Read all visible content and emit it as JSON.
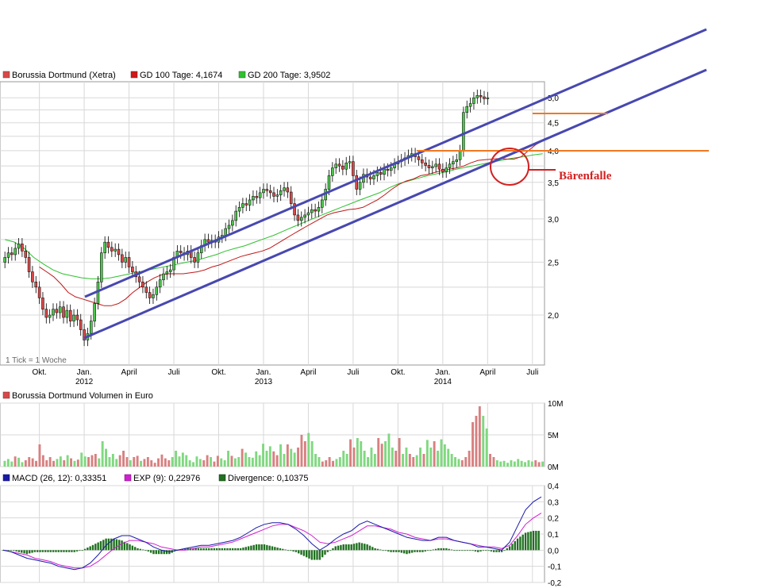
{
  "chart_data": [
    {
      "type": "candlestick",
      "title": "Borussia Dortmund (Xetra)",
      "legend": [
        {
          "label": "Borussia Dortmund (Xetra)",
          "color": "#d84848"
        },
        {
          "label": "GD 100 Tage: 4,1674",
          "color": "#d01818"
        },
        {
          "label": "GD 200 Tage: 3,9502",
          "color": "#30c030"
        }
      ],
      "tick_note": "1 Tick = 1 Woche",
      "y_scale": "log",
      "ylim": [
        1.62,
        5.35
      ],
      "y_ticks": [
        "5,0",
        "4,5",
        "4,0",
        "3,5",
        "3,0",
        "2,5",
        "2,0"
      ],
      "x_ticks": [
        {
          "label": "Okt.",
          "week": 10
        },
        {
          "label": "Jan.",
          "sub": "2012",
          "week": 23
        },
        {
          "label": "April",
          "week": 36
        },
        {
          "label": "Juli",
          "week": 49
        },
        {
          "label": "Okt.",
          "week": 62
        },
        {
          "label": "Jan.",
          "sub": "2013",
          "week": 75
        },
        {
          "label": "April",
          "week": 88
        },
        {
          "label": "Juli",
          "week": 101
        },
        {
          "label": "Okt.",
          "week": 114
        },
        {
          "label": "Jan.",
          "sub": "2014",
          "week": 127
        },
        {
          "label": "April",
          "week": 140
        },
        {
          "label": "Juli",
          "week": 153
        }
      ],
      "weeks": 157,
      "close": [
        2.55,
        2.6,
        2.58,
        2.65,
        2.7,
        2.62,
        2.55,
        2.4,
        2.3,
        2.25,
        2.15,
        2.05,
        1.98,
        2.0,
        2.05,
        2.02,
        2.07,
        1.98,
        2.04,
        1.95,
        2.0,
        1.96,
        1.88,
        1.8,
        1.85,
        1.95,
        2.1,
        2.3,
        2.6,
        2.72,
        2.66,
        2.62,
        2.64,
        2.58,
        2.5,
        2.55,
        2.45,
        2.4,
        2.35,
        2.3,
        2.25,
        2.2,
        2.15,
        2.18,
        2.25,
        2.32,
        2.38,
        2.4,
        2.42,
        2.55,
        2.62,
        2.6,
        2.58,
        2.62,
        2.55,
        2.5,
        2.6,
        2.68,
        2.75,
        2.72,
        2.74,
        2.72,
        2.78,
        2.8,
        2.88,
        2.92,
        2.98,
        3.1,
        3.15,
        3.2,
        3.18,
        3.25,
        3.3,
        3.28,
        3.35,
        3.4,
        3.38,
        3.35,
        3.3,
        3.32,
        3.38,
        3.42,
        3.36,
        3.2,
        3.05,
        2.98,
        3.02,
        3.05,
        3.08,
        3.12,
        3.1,
        3.15,
        3.25,
        3.4,
        3.6,
        3.72,
        3.78,
        3.75,
        3.7,
        3.8,
        3.82,
        3.6,
        3.4,
        3.5,
        3.62,
        3.58,
        3.55,
        3.6,
        3.65,
        3.62,
        3.7,
        3.68,
        3.72,
        3.78,
        3.82,
        3.85,
        3.88,
        3.92,
        3.95,
        3.9,
        3.85,
        3.8,
        3.76,
        3.72,
        3.74,
        3.78,
        3.7,
        3.66,
        3.72,
        3.78,
        3.82,
        3.85,
        4.0,
        4.7,
        4.82,
        4.88,
        5.0,
        5.05,
        5.02,
        4.98,
        5.0
      ],
      "gd100": [
        2.45,
        2.4,
        2.35,
        2.28,
        2.2,
        2.16,
        2.14,
        2.12,
        2.1,
        2.08,
        2.08,
        2.1,
        2.14,
        2.2,
        2.25,
        2.3,
        2.34,
        2.37,
        2.38,
        2.38,
        2.38,
        2.39,
        2.4,
        2.42,
        2.45,
        2.47,
        2.5,
        2.53,
        2.56,
        2.58,
        2.6,
        2.62,
        2.65,
        2.7,
        2.75,
        2.8,
        2.85,
        2.9,
        2.95,
        3.0,
        3.05,
        3.08,
        3.1,
        3.12,
        3.13,
        3.15,
        3.2,
        3.25,
        3.32,
        3.4,
        3.47,
        3.52,
        3.55,
        3.6,
        3.62,
        3.65,
        3.68,
        3.7,
        3.72,
        3.75,
        3.8,
        3.84,
        3.85,
        3.86,
        3.87,
        3.86,
        3.86,
        3.9,
        4.0,
        4.1,
        4.17
      ],
      "gd200": [
        2.75,
        2.72,
        2.65,
        2.55,
        2.48,
        2.42,
        2.38,
        2.36,
        2.34,
        2.33,
        2.33,
        2.34,
        2.36,
        2.38,
        2.4,
        2.42,
        2.44,
        2.46,
        2.48,
        2.5,
        2.52,
        2.55,
        2.58,
        2.62,
        2.65,
        2.68,
        2.72,
        2.76,
        2.8,
        2.85,
        2.9,
        2.95,
        3.0,
        3.05,
        3.1,
        3.15,
        3.2,
        3.25,
        3.3,
        3.35,
        3.42,
        3.48,
        3.52,
        3.56,
        3.6,
        3.63,
        3.66,
        3.7,
        3.73,
        3.76,
        3.79,
        3.82,
        3.85,
        3.88,
        3.9,
        3.93,
        3.95
      ]
    },
    {
      "type": "bar",
      "title": "Borussia Dortmund Volumen in Euro",
      "y_ticks": [
        "10M",
        "5M",
        "0M"
      ],
      "ylim": [
        0,
        10
      ],
      "values": [
        0.9,
        1.2,
        0.8,
        1.6,
        1.4,
        0.7,
        1.0,
        1.5,
        1.3,
        0.9,
        3.5,
        1.8,
        1.0,
        1.5,
        0.9,
        1.2,
        1.6,
        1.0,
        1.8,
        1.3,
        0.9,
        1.1,
        2.2,
        1.6,
        1.5,
        1.8,
        2.0,
        1.3,
        4.0,
        2.8,
        1.5,
        2.0,
        1.2,
        1.8,
        2.5,
        1.5,
        1.0,
        1.5,
        1.7,
        0.9,
        1.2,
        1.5,
        1.0,
        0.6,
        1.3,
        1.9,
        1.3,
        1.0,
        1.5,
        2.5,
        1.6,
        2.2,
        1.8,
        1.0,
        0.7,
        1.6,
        1.2,
        1.0,
        1.8,
        1.5,
        0.8,
        1.7,
        1.3,
        1.0,
        2.5,
        1.7,
        1.3,
        1.5,
        2.8,
        2.2,
        1.5,
        1.4,
        2.4,
        1.8,
        3.6,
        2.5,
        3.2,
        2.4,
        1.8,
        3.5,
        2.0,
        3.5,
        2.8,
        2.2,
        3.0,
        5.0,
        4.0,
        5.3,
        4.0,
        2.0,
        1.5,
        0.8,
        1.0,
        1.5,
        0.9,
        1.2,
        1.5,
        2.5,
        2.0,
        4.3,
        3.0,
        4.5,
        4.0,
        2.5,
        1.5,
        3.0,
        2.0,
        4.5,
        3.6,
        4.0,
        5.2,
        3.0,
        2.5,
        4.5,
        2.0,
        3.0,
        2.0,
        1.5,
        1.8,
        3.0,
        2.0,
        4.2,
        3.0,
        4.0,
        2.5,
        4.3,
        3.5,
        2.8,
        2.0,
        1.5,
        1.2,
        1.0,
        1.5,
        2.5,
        7.0,
        8.0,
        9.5,
        8.0,
        6.0,
        2.0,
        1.5,
        1.0,
        0.8,
        0.9,
        0.6,
        1.0,
        0.8,
        1.2,
        0.9,
        0.7,
        1.0,
        0.8,
        1.0,
        0.7,
        0.8
      ]
    },
    {
      "type": "line",
      "title": "MACD",
      "legend": [
        {
          "label": "MACD (26, 12): 0,33351",
          "color": "#1a1aa8"
        },
        {
          "label": "EXP (9): 0,22976",
          "color": "#d020d0"
        },
        {
          "label": "Divergence: 0,10375",
          "color": "#207020"
        }
      ],
      "y_ticks": [
        "0,4",
        "0,3",
        "0,2",
        "0,1",
        "0,0",
        "-0,1",
        "-0,2"
      ],
      "ylim": [
        -0.2,
        0.4
      ],
      "macd": [
        0.0,
        -0.01,
        -0.03,
        -0.05,
        -0.06,
        -0.07,
        -0.08,
        -0.1,
        -0.11,
        -0.12,
        -0.11,
        -0.08,
        -0.03,
        0.03,
        0.07,
        0.09,
        0.09,
        0.07,
        0.05,
        0.02,
        0.0,
        -0.01,
        0.0,
        0.01,
        0.02,
        0.03,
        0.03,
        0.04,
        0.05,
        0.06,
        0.08,
        0.11,
        0.14,
        0.16,
        0.17,
        0.17,
        0.16,
        0.13,
        0.09,
        0.04,
        0.0,
        0.03,
        0.07,
        0.1,
        0.12,
        0.16,
        0.18,
        0.16,
        0.14,
        0.12,
        0.1,
        0.08,
        0.07,
        0.06,
        0.06,
        0.08,
        0.08,
        0.06,
        0.05,
        0.04,
        0.02,
        0.02,
        0.01,
        0.0,
        0.05,
        0.15,
        0.25,
        0.3,
        0.33
      ],
      "exp": [
        0.0,
        -0.01,
        -0.02,
        -0.03,
        -0.05,
        -0.06,
        -0.07,
        -0.09,
        -0.1,
        -0.11,
        -0.11,
        -0.1,
        -0.07,
        -0.03,
        0.01,
        0.04,
        0.06,
        0.06,
        0.05,
        0.04,
        0.02,
        0.01,
        0.0,
        0.0,
        0.01,
        0.02,
        0.02,
        0.03,
        0.04,
        0.05,
        0.07,
        0.09,
        0.11,
        0.13,
        0.15,
        0.16,
        0.16,
        0.14,
        0.12,
        0.09,
        0.05,
        0.04,
        0.05,
        0.07,
        0.09,
        0.12,
        0.15,
        0.15,
        0.14,
        0.13,
        0.11,
        0.1,
        0.08,
        0.07,
        0.06,
        0.07,
        0.07,
        0.06,
        0.05,
        0.04,
        0.03,
        0.02,
        0.02,
        0.01,
        0.03,
        0.09,
        0.16,
        0.2,
        0.23
      ]
    }
  ],
  "annotations": {
    "pattern_label": "Bärenfalle"
  }
}
